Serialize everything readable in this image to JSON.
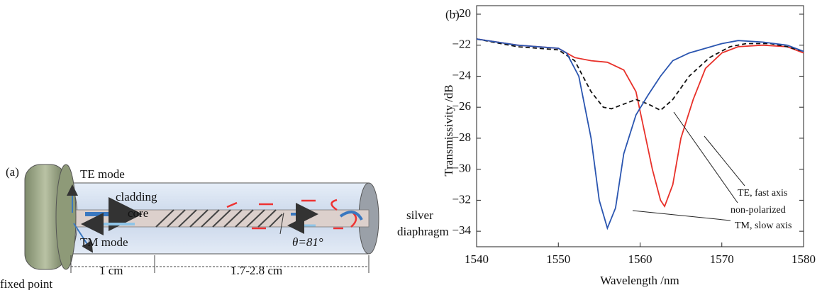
{
  "diagram": {
    "panel_label": "(a)",
    "te_mode": "TE mode",
    "cladding": "cladding",
    "core": "core",
    "tm_mode": "TM mode",
    "angle": "θ=81°",
    "silver": "silver",
    "diaphragm": "diaphragm",
    "length_1": "1 cm",
    "length_2": "1.7-2.8 cm",
    "fixed_point": "fixed point"
  },
  "chart_data": {
    "type": "line",
    "panel_label": "(b)",
    "x_label": "Wavelength /nm",
    "y_label": "Transmissivity /dB",
    "xlim": [
      1540,
      1580
    ],
    "xticks": [
      1540,
      1550,
      1560,
      1570,
      1580
    ],
    "ylim": [
      -35,
      -20
    ],
    "yticks": [
      {
        "value": -20,
        "label": "−20"
      },
      {
        "value": -22,
        "label": "−22"
      },
      {
        "value": -24,
        "label": "−24"
      },
      {
        "value": -26,
        "label": "−26"
      },
      {
        "value": -28,
        "label": "−28"
      },
      {
        "value": -30,
        "label": "−30"
      },
      {
        "value": -32,
        "label": "−32"
      },
      {
        "value": -34,
        "label": "−34"
      }
    ],
    "series": [
      {
        "name": "TE, fast axis",
        "color": "#e8312a",
        "dash": false,
        "x": [
          1540,
          1545,
          1550,
          1552,
          1554,
          1556,
          1558,
          1559.5,
          1560.5,
          1561.5,
          1562.5,
          1563,
          1564,
          1565,
          1566.5,
          1568,
          1570,
          1572,
          1575,
          1578,
          1580
        ],
        "values": [
          -21.6,
          -22,
          -22.2,
          -22.8,
          -23,
          -23.1,
          -23.6,
          -25,
          -27.5,
          -30,
          -32,
          -32.4,
          -31,
          -28,
          -25.5,
          -23.5,
          -22.5,
          -22.1,
          -22,
          -22.1,
          -22.5
        ]
      },
      {
        "name": "non-polarized",
        "color": "#111111",
        "dash": true,
        "x": [
          1540,
          1545,
          1550,
          1552,
          1554,
          1555.5,
          1556.5,
          1558,
          1559.5,
          1561,
          1562.5,
          1564,
          1566,
          1568.5,
          1571,
          1573,
          1576,
          1578,
          1580
        ],
        "values": [
          -21.6,
          -22.1,
          -22.3,
          -23,
          -25,
          -26,
          -26.1,
          -25.8,
          -25.5,
          -25.8,
          -26.2,
          -25.5,
          -24,
          -22.8,
          -22.1,
          -21.9,
          -21.9,
          -22.1,
          -22.4
        ]
      },
      {
        "name": "TM, slow axis",
        "color": "#2a55b0",
        "dash": false,
        "x": [
          1540,
          1545,
          1550,
          1551,
          1552.5,
          1554,
          1555,
          1556,
          1557,
          1558,
          1559.5,
          1561,
          1562.5,
          1564,
          1566,
          1568,
          1570,
          1572,
          1575,
          1578,
          1580
        ],
        "values": [
          -21.6,
          -22,
          -22.2,
          -22.5,
          -24,
          -28,
          -32,
          -33.8,
          -32.5,
          -29,
          -26.5,
          -25.2,
          -24,
          -23,
          -22.5,
          -22.2,
          -21.9,
          -21.7,
          -21.8,
          -22,
          -22.4
        ]
      }
    ]
  }
}
